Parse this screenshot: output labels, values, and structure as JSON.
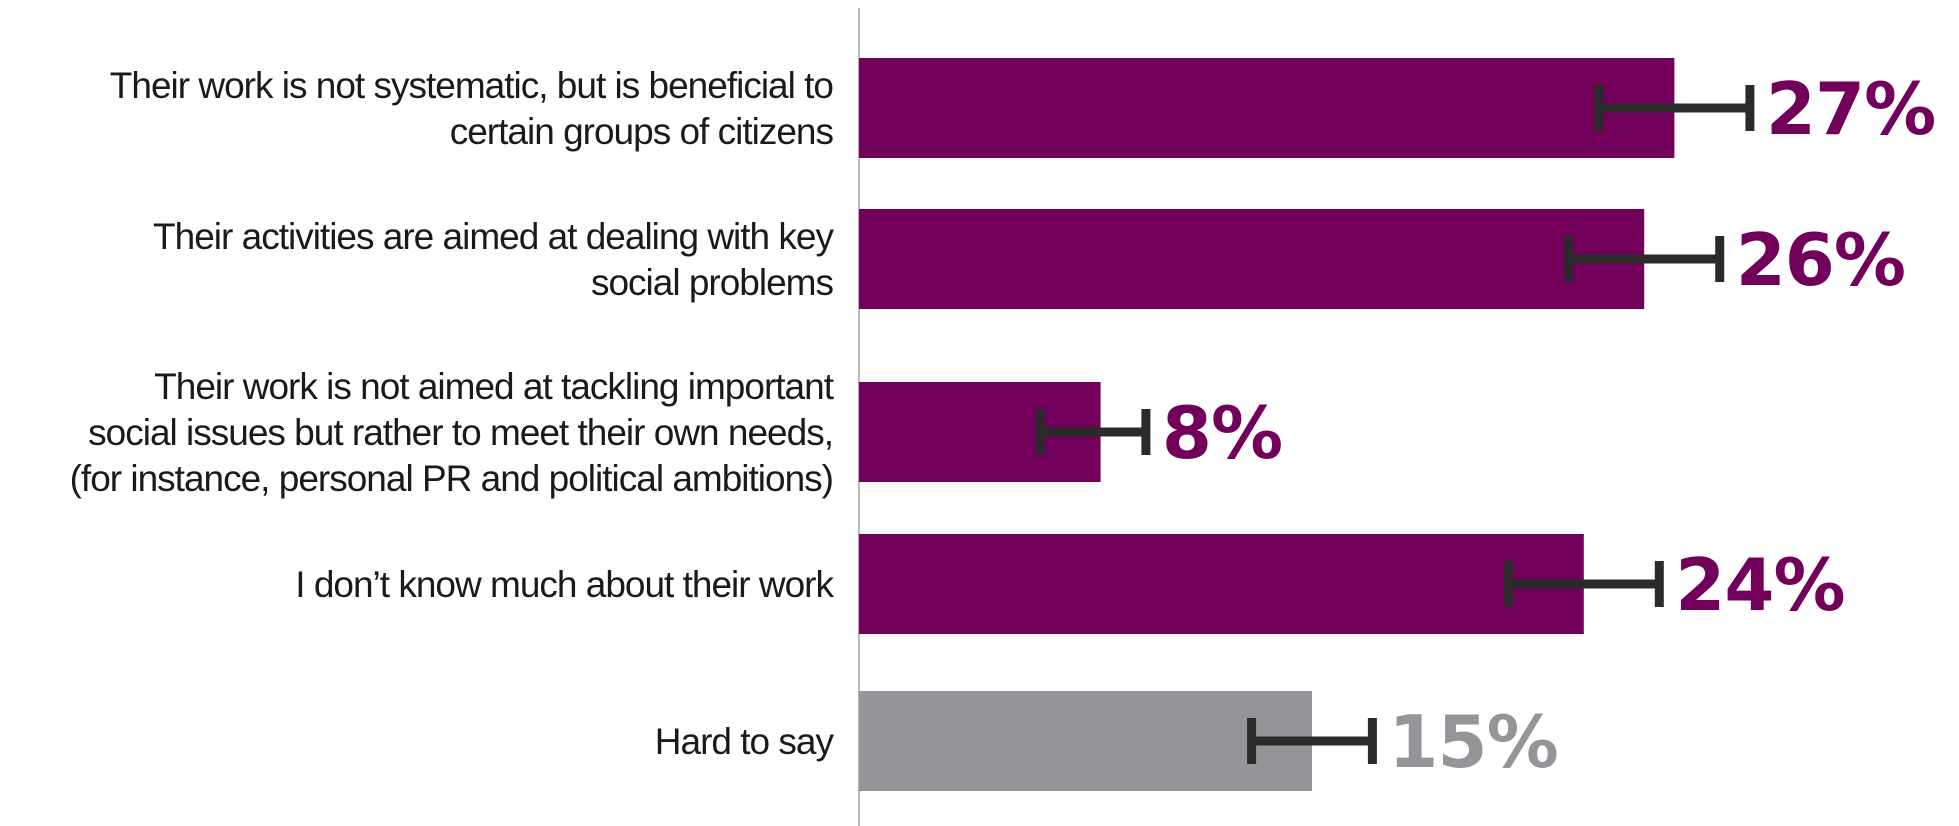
{
  "chart_data": {
    "type": "bar",
    "orientation": "horizontal",
    "title": "",
    "xlabel": "",
    "ylabel": "",
    "xlim": [
      0,
      35
    ],
    "grid": false,
    "legend": "none",
    "categories": [
      [
        "Their work is not systematic, but is beneficial to",
        "certain groups of citizens"
      ],
      [
        "Their activities are aimed at dealing with key",
        "social problems"
      ],
      [
        "Their work is not aimed at tackling important",
        "social issues but rather to meet their own needs,",
        "(for instance, personal PR and political ambitions)"
      ],
      [
        "I don’t know much about their work"
      ],
      [
        "Hard to say"
      ]
    ],
    "values": [
      27,
      26,
      8,
      24,
      15
    ],
    "value_labels": [
      "27%",
      "26%",
      "8%",
      "24%",
      "15%"
    ],
    "error_bars": [
      [
        24.5,
        29.5
      ],
      [
        23.5,
        28.5
      ],
      [
        6,
        9.5
      ],
      [
        21.5,
        26.5
      ],
      [
        13,
        17
      ]
    ],
    "colors": [
      "#72005a",
      "#72005a",
      "#72005a",
      "#72005a",
      "#939598"
    ],
    "axis_color": "#b8b8b8",
    "error_bar_color": "#2a2a2a"
  }
}
